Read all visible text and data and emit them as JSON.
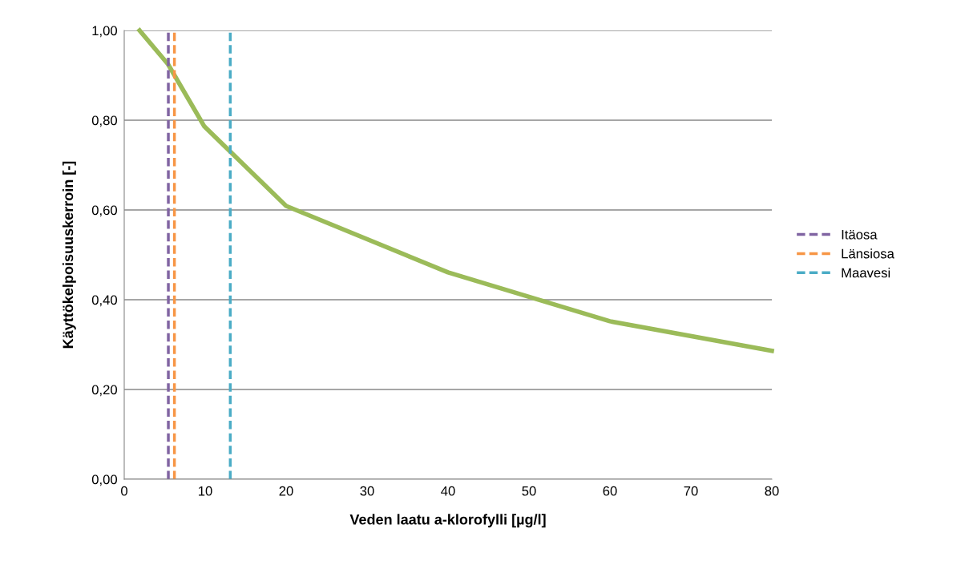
{
  "chart_data": {
    "type": "line",
    "xlabel": "Veden laatu a-klorofylli [µg/l]",
    "ylabel": "Käyttökelpoisuuskerroin [-]",
    "xlim": [
      0,
      80
    ],
    "xticks": [
      0,
      10,
      20,
      30,
      40,
      50,
      60,
      70,
      80
    ],
    "ylim": [
      0,
      1
    ],
    "yticks": [
      {
        "value": 0,
        "label": "0,00"
      },
      {
        "value": 0.2,
        "label": "0,20"
      },
      {
        "value": 0.4,
        "label": "0,40"
      },
      {
        "value": 0.6,
        "label": "0,60"
      },
      {
        "value": 0.8,
        "label": "0,80"
      },
      {
        "value": 1,
        "label": "1,00"
      }
    ],
    "grid": "y",
    "legend": "right",
    "line_style": "solid",
    "series": [
      {
        "color": "#9bbb59",
        "x": [
          1.9,
          5.4,
          9.9,
          20,
          40,
          60,
          80
        ],
        "values": [
          1.0,
          0.925,
          0.786,
          0.609,
          0.461,
          0.352,
          0.286
        ]
      },
      {
        "name": "Itäosa",
        "color": "#8064a2",
        "line_style": "dashed",
        "x": [
          5.45,
          5.45
        ],
        "values": [
          0,
          1
        ]
      },
      {
        "name": "Länsiosa",
        "color": "#f79646",
        "line_style": "dashed",
        "x": [
          6.2,
          6.2
        ],
        "values": [
          0,
          1
        ]
      },
      {
        "name": "Maavesi",
        "color": "#4bacc6",
        "line_style": "dashed",
        "x": [
          13.1,
          13.1
        ],
        "values": [
          0,
          1
        ]
      }
    ]
  }
}
